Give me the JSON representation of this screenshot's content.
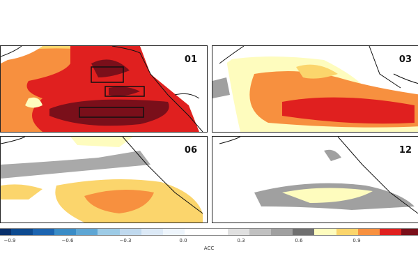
{
  "panels": [
    {
      "label": "01"
    },
    {
      "label": "03"
    },
    {
      "label": "06"
    },
    {
      "label": "12"
    }
  ],
  "colorbar": {
    "label": "ACC",
    "ticks": [
      "−0.9",
      "−0.6",
      "−0.3",
      "0.0",
      "0.3",
      "0.6",
      "0.9"
    ],
    "colors": [
      "#08306b",
      "#0d4a8f",
      "#1c64b0",
      "#3a8cc6",
      "#5ea6d4",
      "#9dcbe6",
      "#c0d9ee",
      "#dce9f6",
      "#eef5fc",
      "#ffffff",
      "#ffffff",
      "#e0e0e0",
      "#c0c0c0",
      "#a0a0a0",
      "#707070",
      "#fefcbe",
      "#fbd56c",
      "#f7903f",
      "#e0201f",
      "#7a0f1a"
    ]
  }
}
